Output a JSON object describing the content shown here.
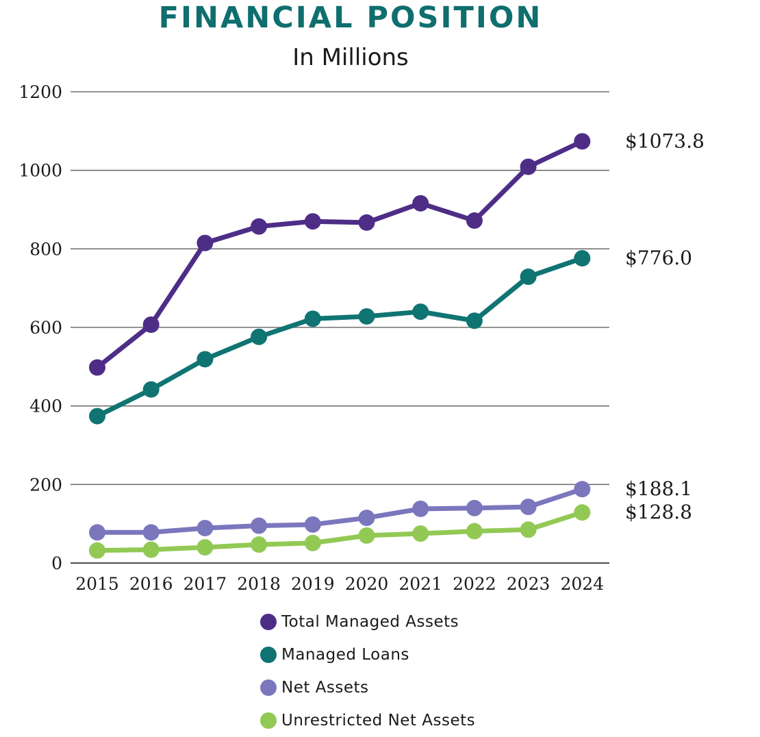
{
  "chart_data": {
    "type": "line",
    "title": "FINANCIAL POSITION",
    "subtitle": "In Millions",
    "xlabel": "",
    "ylabel": "",
    "ylim": [
      0,
      1200
    ],
    "yticks": [
      "0",
      "200",
      "400",
      "600",
      "800",
      "1000",
      "1200"
    ],
    "ytick_values": [
      0,
      200,
      400,
      600,
      800,
      1000,
      1200
    ],
    "categories": [
      "2015",
      "2016",
      "2017",
      "2018",
      "2019",
      "2020",
      "2021",
      "2022",
      "2023",
      "2024"
    ],
    "grid": true,
    "legend_position": "bottom",
    "series": [
      {
        "name": "Total Managed Assets",
        "color": "#4e2d87",
        "values": [
          498,
          607,
          815,
          857,
          870,
          867,
          916,
          872,
          1009,
          1073.8
        ],
        "end_label": "$1073.8"
      },
      {
        "name": "Managed Loans",
        "color": "#107473",
        "values": [
          374,
          442,
          519,
          576,
          622,
          628,
          640,
          617,
          729,
          776.0
        ],
        "end_label": "$776.0"
      },
      {
        "name": "Net Assets",
        "color": "#7b77bd",
        "values": [
          78,
          78,
          89,
          95,
          98,
          115,
          138,
          140,
          143,
          188.1
        ],
        "end_label": "$188.1"
      },
      {
        "name": "Unrestricted Net Assets",
        "color": "#92c954",
        "values": [
          32,
          34,
          40,
          47,
          51,
          70,
          75,
          81,
          85,
          128.8
        ],
        "end_label": "$128.8"
      }
    ]
  },
  "colors": {
    "title": "#0f6e6e",
    "gridline": "#707070",
    "axis": "#555555"
  }
}
